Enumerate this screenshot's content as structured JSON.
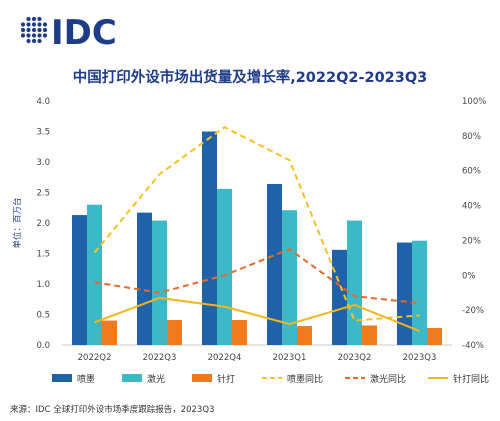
{
  "brand": {
    "logo_text": "IDC",
    "logo_color": "#1f3c88",
    "dot_color": "#1f3c88"
  },
  "header": {
    "title": "中国打印外设市场出货量及增长率,2022Q2-2023Q3"
  },
  "footer": {
    "source": "来源：IDC 全球打印外设市场季度跟踪报告，2023Q3"
  },
  "colors": {
    "inkjet": "#1f62a8",
    "laser": "#3cb8c7",
    "dot": "#f07a20",
    "inkjet_yoy": "#f8c023",
    "laser_yoy": "#e46a2b",
    "dot_yoy": "#f4b41a"
  },
  "chart_data": {
    "type": "bar",
    "title": "中国打印外设市场出货量及增长率,2022Q2-2023Q3",
    "ylabel": "单位：百万台",
    "ylim": [
      0,
      4.0
    ],
    "y2lim": [
      -40,
      100
    ],
    "y_ticks": [
      "0.0",
      "0.5",
      "1.0",
      "1.5",
      "2.0",
      "2.5",
      "3.0",
      "3.5",
      "4.0"
    ],
    "y2_ticks": [
      "-40%",
      "-20%",
      "0%",
      "20%",
      "40%",
      "60%",
      "80%",
      "100%"
    ],
    "categories": [
      "2022Q2",
      "2022Q3",
      "2022Q4",
      "2023Q1",
      "2023Q2",
      "2023Q3"
    ],
    "grid": false,
    "legend": "bottom",
    "series": [
      {
        "name": "喷墨",
        "kind": "bar",
        "color_key": "inkjet",
        "values": [
          2.13,
          2.17,
          3.5,
          2.64,
          1.56,
          1.68
        ]
      },
      {
        "name": "激光",
        "kind": "bar",
        "color_key": "laser",
        "values": [
          2.3,
          2.04,
          2.56,
          2.21,
          2.04,
          1.71
        ]
      },
      {
        "name": "针打",
        "kind": "bar",
        "color_key": "dot",
        "values": [
          0.4,
          0.41,
          0.41,
          0.31,
          0.32,
          0.28
        ]
      },
      {
        "name": "喷墨同比",
        "kind": "line",
        "style": "dashed",
        "axis": "right",
        "color_key": "inkjet_yoy",
        "values": [
          13,
          58,
          85,
          66,
          -26,
          -23
        ]
      },
      {
        "name": "激光同比",
        "kind": "line",
        "style": "dashed",
        "axis": "right",
        "color_key": "laser_yoy",
        "values": [
          -4,
          -10,
          0,
          15,
          -12,
          -16
        ]
      },
      {
        "name": "针打同比",
        "kind": "line",
        "style": "solid",
        "axis": "right",
        "color_key": "dot_yoy",
        "values": [
          -27,
          -13,
          -18,
          -28,
          -17,
          -32
        ]
      }
    ]
  }
}
